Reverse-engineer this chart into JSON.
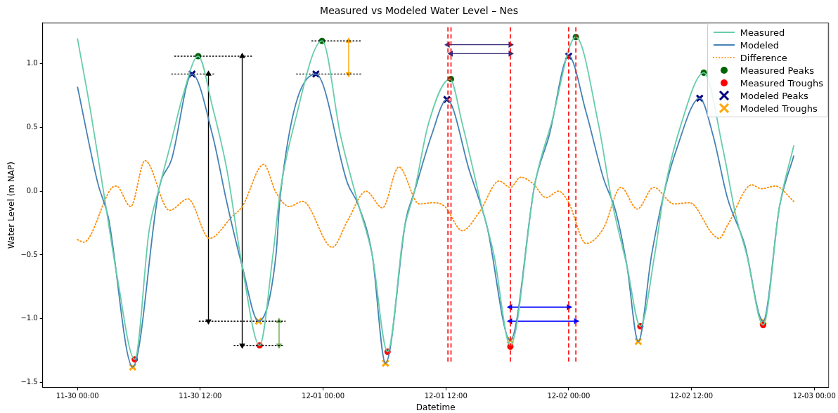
{
  "chart_data": {
    "type": "line",
    "title": "Measured vs Modeled Water Level – Nes",
    "xlabel": "Datetime",
    "ylabel": "Water Level (m NAP)",
    "xlim": [
      "--11-29T20:36",
      "--12-03T01:24"
    ],
    "ylim": [
      -1.54,
      1.32
    ],
    "xticks": [
      {
        "value": "--11-30T00:00",
        "label": "11-30 00:00"
      },
      {
        "value": "--11-30T12:00",
        "label": "11-30 12:00"
      },
      {
        "value": "--12-01T00:00",
        "label": "12-01 00:00"
      },
      {
        "value": "--12-01T12:00",
        "label": "12-01 12:00"
      },
      {
        "value": "--12-02T00:00",
        "label": "12-02 00:00"
      },
      {
        "value": "--12-02T12:00",
        "label": "12-02 12:00"
      },
      {
        "value": "--12-03T00:00",
        "label": "12-03 00:00"
      }
    ],
    "yticks": [
      {
        "value": -1.5,
        "label": "−1.5"
      },
      {
        "value": -1,
        "label": "−1.0"
      },
      {
        "value": -0.5,
        "label": "−0.5"
      },
      {
        "value": 0,
        "label": "0.0"
      },
      {
        "value": 0.5,
        "label": "0.5"
      },
      {
        "value": 1,
        "label": "1.0"
      }
    ],
    "legend": "top right",
    "series": [
      {
        "name": "Measured",
        "color": "#66cdaa",
        "marker": "none",
        "line_style": "solid",
        "x": [
          "--11-30T00:00",
          "--11-30T01:18",
          "--11-30T02:42",
          "--11-30T03:54",
          "--11-30T05:36",
          "--11-30T07:00",
          "--11-30T08:00",
          "--11-30T09:12",
          "--11-30T10:18",
          "--11-30T11:48",
          "--11-30T13:12",
          "--11-30T14:36",
          "--11-30T16:06",
          "--11-30T17:48",
          "--11-30T19:06",
          "--11-30T19:48",
          "--11-30T21:12",
          "--11-30T23:54",
          "--12-01T01:42",
          "--12-01T03:24",
          "--12-01T04:48",
          "--12-01T06:18",
          "--12-01T07:54",
          "--12-01T08:54",
          "--12-01T10:18",
          "--12-01T12:24",
          "--12-01T13:36",
          "--12-01T15:30",
          "--12-01T16:42",
          "--12-01T18:18",
          "--12-01T20:42",
          "--12-01T22:18",
          "--12-02T00:42",
          "--12-02T02:54",
          "--12-02T04:12",
          "--12-02T05:42",
          "--12-02T07:00",
          "--12-02T08:24",
          "--12-02T09:18",
          "--12-02T11:00",
          "--12-02T13:12",
          "--12-02T15:06",
          "--12-02T16:18",
          "--12-02T17:24",
          "--12-02T19:00",
          "--12-02T20:36",
          "--12-02T22:00"
        ],
        "values": [
          1.2,
          0.62,
          -0.08,
          -0.68,
          -1.32,
          -0.31,
          0.03,
          0.4,
          0.75,
          1.06,
          0.66,
          0.17,
          -0.59,
          -1.21,
          -0.5,
          -0.01,
          0.53,
          1.18,
          0.44,
          -0.09,
          -0.5,
          -1.26,
          -0.31,
          -0.01,
          0.53,
          0.88,
          0.53,
          -0.12,
          -0.5,
          -1.21,
          0.06,
          0.53,
          1.21,
          0.53,
          -0.07,
          -0.59,
          -1.06,
          -0.5,
          -0.02,
          0.53,
          0.93,
          0.32,
          -0.18,
          -0.5,
          -1.05,
          -0.12,
          0.36
        ]
      },
      {
        "name": "Modeled",
        "color": "#4682b4",
        "marker": "none",
        "line_style": "solid",
        "x": [
          "--11-30T00:00",
          "--11-30T02:00",
          "--11-30T03:00",
          "--11-30T05:24",
          "--11-30T08:00",
          "--11-30T09:12",
          "--11-30T11:12",
          "--11-30T13:12",
          "--11-30T14:36",
          "--11-30T16:06",
          "--11-30T17:42",
          "--11-30T19:24",
          "--11-30T19:48",
          "--11-30T23:18",
          "--12-01T02:24",
          "--12-01T03:24",
          "--12-01T04:48",
          "--12-01T06:06",
          "--12-01T08:06",
          "--12-01T08:54",
          "--12-01T10:36",
          "--12-01T12:06",
          "--12-01T14:18",
          "--12-01T16:00",
          "--12-01T18:18",
          "--12-01T20:42",
          "--12-01T22:06",
          "--12-02T00:00",
          "--12-02T01:42",
          "--12-02T03:24",
          "--12-02T04:36",
          "--12-02T05:42",
          "--12-02T06:48",
          "--12-02T08:06",
          "--12-02T09:18",
          "--12-02T10:30",
          "--12-02T12:48",
          "--12-02T14:06",
          "--12-02T15:30",
          "--12-02T17:12",
          "--12-02T19:00",
          "--12-02T20:36",
          "--12-02T22:00"
        ],
        "values": [
          0.82,
          0.06,
          -0.2,
          -1.38,
          0.03,
          0.25,
          0.92,
          0.44,
          -0.09,
          -0.59,
          -1.02,
          -0.5,
          -0.05,
          0.92,
          0.06,
          -0.1,
          -0.5,
          -1.35,
          -0.22,
          -0.01,
          0.44,
          0.72,
          0.16,
          -0.27,
          -1.17,
          0.06,
          0.44,
          1.06,
          0.62,
          0.1,
          -0.16,
          -0.59,
          -1.18,
          -0.5,
          -0.02,
          0.32,
          0.73,
          0.44,
          -0.05,
          -0.42,
          -1.02,
          -0.12,
          0.28
        ]
      },
      {
        "name": "Difference",
        "color": "#ff8c00",
        "marker": "none",
        "line_style": "dotted",
        "x": [
          "--11-30T00:00",
          "--11-30T00:36",
          "--11-30T03:24",
          "--11-30T03:48",
          "--11-30T05:12",
          "--11-30T06:36",
          "--11-30T09:00",
          "--11-30T10:48",
          "--11-30T12:54",
          "--11-30T15:06",
          "--11-30T16:06",
          "--11-30T18:12",
          "--11-30T19:24",
          "--11-30T20:42",
          "--11-30T22:00",
          "--12-01T00:54",
          "--12-01T02:24",
          "--12-01T04:12",
          "--12-01T05:48",
          "--12-01T07:24",
          "--12-01T09:24",
          "--12-01T10:48",
          "--12-01T11:54",
          "--12-01T13:36",
          "--12-01T15:18",
          "--12-01T17:12",
          "--12-01T18:18",
          "--12-01T19:18",
          "--12-01T20:30",
          "--12-01T21:48",
          "--12-01T23:00",
          "--12-02T00:00",
          "--12-02T01:42",
          "--12-02T03:24",
          "--12-02T05:06",
          "--12-02T06:42",
          "--12-02T08:18",
          "--12-02T10:18",
          "--12-02T11:48",
          "--12-02T14:06",
          "--12-02T14:42",
          "--12-02T15:30",
          "--12-02T17:54",
          "--12-02T18:48",
          "--12-02T20:12",
          "--12-02T22:00"
        ],
        "values": [
          -0.38,
          -0.4,
          0.03,
          0.04,
          -0.12,
          0.24,
          -0.15,
          -0.06,
          -0.37,
          -0.2,
          -0.12,
          0.21,
          -0.01,
          -0.12,
          -0.08,
          -0.44,
          -0.23,
          0,
          -0.13,
          0.19,
          -0.1,
          -0.09,
          -0.12,
          -0.31,
          -0.16,
          0.08,
          0.03,
          0.11,
          0.06,
          -0.05,
          0,
          -0.09,
          -0.41,
          -0.29,
          0.03,
          -0.14,
          0.03,
          -0.1,
          -0.09,
          -0.34,
          -0.37,
          -0.27,
          0.05,
          0.02,
          0.04,
          -0.08
        ]
      },
      {
        "color": "#000000",
        "marker": "none",
        "line_style": "dotted",
        "x": [
          "--11-30T09:30",
          "--11-30T17:06"
        ],
        "values": [
          1.06,
          1.06
        ]
      },
      {
        "color": "#000000",
        "marker": "none",
        "line_style": "dotted",
        "x": [
          "--11-30T09:12",
          "--11-30T13:30"
        ],
        "values": [
          0.92,
          0.92
        ]
      },
      {
        "color": "#000000",
        "marker": "none",
        "line_style": "dotted",
        "x": [
          "--11-30T22:54",
          "--12-01T03:42"
        ],
        "values": [
          1.18,
          1.18
        ]
      },
      {
        "color": "#000000",
        "marker": "none",
        "line_style": "dotted",
        "x": [
          "--11-30T21:24",
          "--12-01T03:42"
        ],
        "values": [
          0.92,
          0.92
        ]
      },
      {
        "color": "#000000",
        "marker": "none",
        "line_style": "dotted",
        "x": [
          "--11-30T11:54",
          "--11-30T20:18"
        ],
        "values": [
          -1.02,
          -1.02
        ]
      },
      {
        "color": "#000000",
        "marker": "none",
        "line_style": "dotted",
        "x": [
          "--11-30T15:18",
          "--11-30T20:06"
        ],
        "values": [
          -1.21,
          -1.21
        ]
      },
      {
        "color": "#000000",
        "marker": "triangle",
        "line_style": "solid",
        "x": [
          "--11-30T12:48",
          "--11-30T12:48"
        ],
        "values": [
          0.92,
          -1.02
        ]
      },
      {
        "color": "#000000",
        "marker": "triangle",
        "line_style": "solid",
        "x": [
          "--11-30T16:06",
          "--11-30T16:06"
        ],
        "values": [
          1.06,
          -1.21
        ]
      },
      {
        "color": "#ffa500",
        "marker": "triangle",
        "line_style": "solid",
        "x": [
          "--12-01T02:30",
          "--12-01T02:30"
        ],
        "values": [
          1.18,
          0.92
        ]
      },
      {
        "color": "#6aa84f",
        "marker": "triangle",
        "line_style": "solid",
        "x": [
          "--11-30T19:42",
          "--11-30T19:42"
        ],
        "values": [
          -1.02,
          -1.21
        ]
      },
      {
        "color": "#3b2a7a",
        "marker": "triangle",
        "line_style": "solid",
        "x": [
          "--12-01T12:12",
          "--12-01T18:18"
        ],
        "values": [
          1.15,
          1.15
        ]
      },
      {
        "color": "#3b2a7a",
        "marker": "triangle",
        "line_style": "solid",
        "x": [
          "--12-01T12:30",
          "--12-01T18:18"
        ],
        "values": [
          1.08,
          1.08
        ]
      },
      {
        "color": "#0000ff",
        "marker": "triangle",
        "line_style": "solid",
        "x": [
          "--12-01T18:18",
          "--12-02T00:00"
        ],
        "values": [
          -0.91,
          -0.91
        ]
      },
      {
        "color": "#0000ff",
        "marker": "triangle",
        "line_style": "solid",
        "x": [
          "--12-01T18:18",
          "--12-02T00:42"
        ],
        "values": [
          -1.02,
          -1.02
        ]
      },
      {
        "name": "Measured Peaks",
        "type": "scatter",
        "color": "#006400",
        "marker": "circle",
        "x": [
          "--11-30T11:48",
          "--11-30T23:54",
          "--12-01T12:30",
          "--12-02T00:42",
          "--12-02T13:12"
        ],
        "values": [
          1.06,
          1.18,
          0.88,
          1.21,
          0.93
        ]
      },
      {
        "name": "Measured Troughs",
        "type": "scatter",
        "color": "#ff0000",
        "marker": "circle",
        "x": [
          "--11-30T05:36",
          "--11-30T17:48",
          "--12-01T06:18",
          "--12-01T18:18",
          "--12-02T07:00",
          "--12-02T19:00"
        ],
        "values": [
          -1.32,
          -1.21,
          -1.26,
          -1.22,
          -1.06,
          -1.05
        ]
      },
      {
        "name": "Modeled Peaks",
        "type": "scatter",
        "color": "#000080",
        "marker": "cross",
        "x": [
          "--11-30T11:12",
          "--11-30T23:18",
          "--12-01T12:06",
          "--12-02T00:00",
          "--12-02T12:48"
        ],
        "values": [
          0.92,
          0.92,
          0.72,
          1.06,
          0.73
        ]
      },
      {
        "name": "Modeled Troughs",
        "type": "scatter",
        "color": "#ffa500",
        "marker": "cross",
        "x": [
          "--11-30T05:24",
          "--11-30T17:42",
          "--12-01T06:06",
          "--12-01T18:18",
          "--12-02T06:48",
          "--12-02T19:00"
        ],
        "values": [
          -1.38,
          -1.02,
          -1.35,
          -1.17,
          -1.18,
          -1.02
        ]
      }
    ],
    "ref_lines": [
      {
        "axis": "x",
        "value": "--12-01T12:12",
        "color": "#ff0000",
        "line_style": "dashed"
      },
      {
        "axis": "x",
        "value": "--12-01T12:30",
        "color": "#ff0000",
        "line_style": "dashed"
      },
      {
        "axis": "x",
        "value": "--12-01T18:18",
        "color": "#ff0000",
        "line_style": "dashed"
      },
      {
        "axis": "x",
        "value": "--12-02T00:00",
        "color": "#ff0000",
        "line_style": "dashed"
      },
      {
        "axis": "x",
        "value": "--12-02T00:42",
        "color": "#ff0000",
        "line_style": "dashed"
      }
    ]
  }
}
